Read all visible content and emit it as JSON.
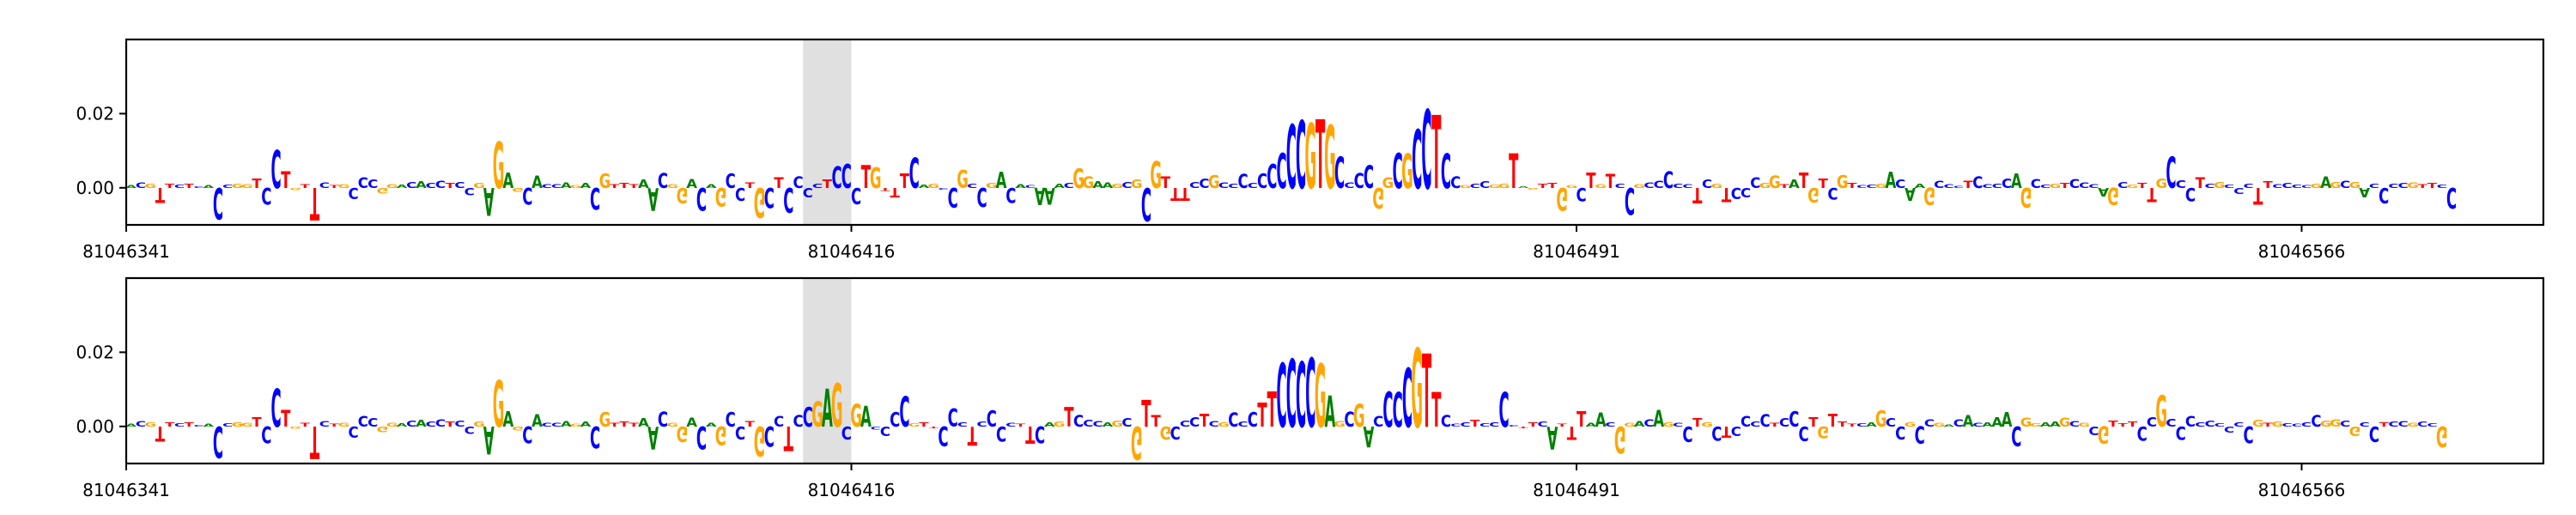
{
  "chart_data": [
    {
      "type": "sequence-logo",
      "region_start": 81046341,
      "region_end": 81046590,
      "x_tick_labels": [
        "81046341",
        "81046416",
        "81046491",
        "81046566"
      ],
      "x_ticks": [
        81046341,
        81046416,
        81046491,
        81046566
      ],
      "y_tick_labels": [
        "0.00",
        "0.02"
      ],
      "y_ticks": [
        0.0,
        0.02
      ],
      "ylim": [
        -0.01,
        0.04
      ],
      "highlight_range": [
        81046411,
        81046416
      ],
      "base_colors": {
        "A": "#008000",
        "C": "#0000ff",
        "G": "#ffa500",
        "T": "#ff0000"
      },
      "sequence": "ACGTTCTCACCGGTCCTGTTCTGCCCGGACACCTCCGAGAGCACCAGACGTTTAACGGACAGCCTGCTCCCCTCCCTGTTTCAGCCGCCGACACAAACGGAAGCGCGTTTCCGCCCCCCCCCGTGCCCCGGCGCCTCCGCCGGTAGTTGGCTGTCCGCCCCCTCGTCCCGGTATGTCGTCCGACAAGCCCTCCCCAGCCGTCCCAGCGTTGCCCTCGCCCTTCCCCGAGCGACCCCGTTCCCTCCCCTTCA",
      "values": [
        0.0008,
        0.0015,
        0.0012,
        -0.004,
        0.0012,
        0.0009,
        0.0012,
        0.0005,
        0.0007,
        -0.0085,
        0.0009,
        0.0012,
        0.0011,
        0.0025,
        -0.0045,
        0.0102,
        0.0045,
        -0.0006,
        0.001,
        -0.0088,
        0.0015,
        0.0008,
        0.001,
        -0.003,
        0.0028,
        0.0022,
        -0.0015,
        0.0011,
        0.0009,
        0.0016,
        0.0018,
        0.0014,
        0.0019,
        0.0013,
        0.0017,
        -0.002,
        0.0014,
        -0.0075,
        0.0125,
        0.0042,
        -0.0011,
        -0.0045,
        0.0033,
        0.001,
        0.0011,
        0.0015,
        0.0008,
        0.0014,
        -0.0058,
        0.0039,
        0.001,
        0.0014,
        0.001,
        0.0022,
        -0.0061,
        0.0041,
        0.001,
        -0.0042,
        0.0024,
        -0.0061,
        0.001,
        -0.0049,
        0.0039,
        -0.0035,
        0.0015,
        -0.008,
        -0.0054,
        0.0029,
        -0.0066,
        0.0032,
        -0.0025,
        0.0012,
        0.0022,
        0.0058,
        0.0065,
        -0.0044,
        0.0062,
        0.0055,
        -0.0007,
        -0.0026,
        0.0039,
        0.0081,
        0.0009,
        0.0012,
        -0.0004,
        -0.0053,
        0.0048,
        0.0012,
        -0.0051,
        0.0014,
        0.0043,
        -0.004,
        0.0011,
        0.0008,
        -0.0047,
        -0.0045,
        0.0012,
        0.0014,
        0.0052,
        0.0032,
        0.0018,
        0.0015,
        0.0012,
        0.0017,
        0.0022,
        -0.0089,
        0.0072,
        0.0032,
        -0.0035,
        -0.0034,
        0.0016,
        0.0025,
        0.0034,
        0.0015,
        0.0012,
        0.0038,
        0.0014,
        0.0039,
        0.0065,
        0.0095,
        0.0172,
        0.0182,
        0.0175,
        0.0185,
        0.0171,
        0.0085,
        0.0015,
        0.004,
        0.0062,
        -0.0055,
        0.0028,
        0.0095,
        0.0094,
        0.0158,
        0.0212,
        0.0198,
        0.0094,
        0.0032,
        0.0008,
        0.0012,
        0.0018,
        0.0009,
        0.0012,
        0.0094,
        0.0005,
        -0.0004,
        0.0012,
        0.0013,
        -0.0062,
        0.0008,
        -0.0036,
        0.0042,
        0.0011,
        0.0038,
        0.0012,
        -0.0072,
        0.0011,
        0.0015,
        0.0019,
        0.0045,
        0.0012,
        0.0011,
        -0.0042,
        0.0022,
        0.0012,
        -0.0038,
        -0.003,
        -0.0026,
        0.0028,
        0.0014,
        0.0033,
        0.0011,
        0.0022,
        0.0042,
        -0.0039,
        0.0025,
        -0.0031,
        0.0035,
        0.0014,
        0.0008,
        0.0009,
        0.0012,
        0.0043,
        0.0022,
        -0.0034,
        0.0012,
        -0.0046,
        0.0019,
        0.0011,
        0.0006,
        0.0019,
        0.0031,
        0.0011,
        0.0012,
        0.0025,
        0.0039,
        -0.0053,
        0.0024,
        0.0009,
        0.0012,
        0.0014,
        0.0024,
        0.0015,
        0.0011,
        -0.0022,
        -0.0046,
        0.0017,
        0.0009,
        0.0014,
        -0.0037,
        0.0025,
        0.0084,
        0.0021,
        -0.0036,
        0.0028,
        0.0012,
        0.0016,
        0.0009,
        -0.0016,
        0.0012,
        -0.0045,
        0.0018,
        0.0011,
        0.0014,
        0.0009,
        0.0008,
        0.0012,
        0.0031,
        0.0017,
        0.0019,
        0.0016,
        -0.0026,
        0.0012,
        -0.0042,
        0.0012,
        0.0014,
        0.0015,
        0.0011,
        0.0013,
        0.0009,
        -0.0056
      ]
    },
    {
      "type": "sequence-logo",
      "region_start": 81046341,
      "region_end": 81046590,
      "x_tick_labels": [
        "81046341",
        "81046416",
        "81046491",
        "81046566"
      ],
      "x_ticks": [
        81046341,
        81046416,
        81046491,
        81046566
      ],
      "y_tick_labels": [
        "0.00",
        "0.02"
      ],
      "y_ticks": [
        0.0,
        0.02
      ],
      "ylim": [
        -0.01,
        0.04
      ],
      "highlight_range": [
        81046411,
        81046416
      ],
      "base_colors": {
        "A": "#008000",
        "C": "#0000ff",
        "G": "#ffa500",
        "T": "#ff0000"
      },
      "sequence": "ACGTTCTCACCGGTCCTGTTCTGCCCGGACACCTCCGAGAGCACCAGACGTTTAACGGACAGCCTGCCTCCGAGCGACCCCGTTCCCTCCCCTTCAGTCCCAGCGTTGCCCTCGCCCTTCCCCGAGCGACCCCGTTCCCTCCCCTTCATTTAACGGACAGCCTGCTCCCCTCCCTGTTTCAGCCGCCGACACAAACGGAAGCGCGTTTCCGCCCCCCCCCGTGCCCCGGCGCCTCCGCCGGTAGTTGGC",
      "values": [
        0.0008,
        0.0015,
        0.0012,
        -0.004,
        0.0012,
        0.0009,
        0.0012,
        0.0005,
        0.0007,
        -0.0085,
        0.0009,
        0.0012,
        0.0011,
        0.0025,
        -0.0045,
        0.0102,
        0.0045,
        -0.0006,
        0.001,
        -0.0088,
        0.0015,
        0.0008,
        0.001,
        -0.003,
        0.0028,
        0.0022,
        -0.0015,
        0.0011,
        0.0009,
        0.0016,
        0.0018,
        0.0014,
        0.0019,
        0.0013,
        0.0017,
        -0.002,
        0.0014,
        -0.0075,
        0.0125,
        0.0042,
        -0.0011,
        -0.0045,
        0.0033,
        0.001,
        0.0011,
        0.0015,
        0.0008,
        0.0014,
        -0.0058,
        0.0039,
        0.001,
        0.0014,
        0.001,
        0.0022,
        -0.0061,
        0.0041,
        0.001,
        -0.0042,
        0.0024,
        -0.0061,
        0.001,
        -0.0049,
        0.0039,
        -0.0035,
        0.0015,
        -0.008,
        -0.0054,
        0.0029,
        -0.0066,
        0.0032,
        0.0052,
        0.0068,
        0.0102,
        0.0118,
        -0.0035,
        0.0062,
        0.0055,
        -0.0007,
        -0.0026,
        0.0039,
        0.0081,
        0.0009,
        0.0012,
        -0.0004,
        -0.0053,
        0.0048,
        0.0012,
        -0.0051,
        0.0014,
        0.0043,
        -0.004,
        0.0011,
        0.0008,
        -0.0047,
        -0.0045,
        0.0012,
        0.0014,
        0.0052,
        0.0032,
        0.0018,
        0.0015,
        0.0012,
        0.0017,
        0.0022,
        -0.0089,
        0.0072,
        0.0032,
        -0.0035,
        -0.0034,
        0.0016,
        0.0025,
        0.0034,
        0.0015,
        0.0012,
        0.0038,
        0.0014,
        0.0039,
        0.0065,
        0.0095,
        0.0172,
        0.0182,
        0.0175,
        0.0185,
        0.0171,
        0.0085,
        0.0015,
        0.004,
        0.0062,
        -0.0055,
        0.0028,
        0.0095,
        0.0094,
        0.0158,
        0.0212,
        0.0198,
        0.0094,
        0.0032,
        0.0008,
        0.0012,
        0.0018,
        0.0009,
        0.0012,
        0.0094,
        0.0005,
        -0.0004,
        0.0012,
        0.0013,
        -0.0062,
        0.0008,
        -0.0036,
        0.0042,
        0.0011,
        0.0038,
        0.0012,
        -0.0072,
        0.0011,
        0.0015,
        0.0019,
        0.0045,
        0.0012,
        0.0011,
        -0.0042,
        0.0022,
        0.0012,
        -0.0038,
        -0.003,
        -0.0026,
        0.0028,
        0.0014,
        0.0033,
        0.0011,
        0.0022,
        0.0042,
        -0.0039,
        0.0025,
        -0.0031,
        0.0035,
        0.0014,
        0.0008,
        0.0009,
        0.0012,
        0.0043,
        0.0022,
        -0.0034,
        0.0012,
        -0.0046,
        0.0019,
        0.0011,
        0.0006,
        0.0019,
        0.0031,
        0.0011,
        0.0012,
        0.0025,
        0.0039,
        -0.0053,
        0.0024,
        0.0009,
        0.0012,
        0.0014,
        0.0024,
        0.0015,
        0.0011,
        -0.0022,
        -0.0046,
        0.0017,
        0.0009,
        0.0014,
        -0.0037,
        0.0025,
        0.0084,
        0.0021,
        -0.0036,
        0.0028,
        0.0012,
        0.0016,
        0.0009,
        -0.0016,
        0.0012,
        -0.0045,
        0.0018,
        0.0011,
        0.0014,
        0.0009,
        0.0008,
        0.0012,
        0.0031,
        0.0017,
        0.0019,
        0.0016,
        -0.0026,
        0.0012,
        -0.0042,
        0.0012,
        0.0014,
        0.0015,
        0.0011,
        0.0013,
        0.0009,
        -0.0056
      ]
    }
  ]
}
